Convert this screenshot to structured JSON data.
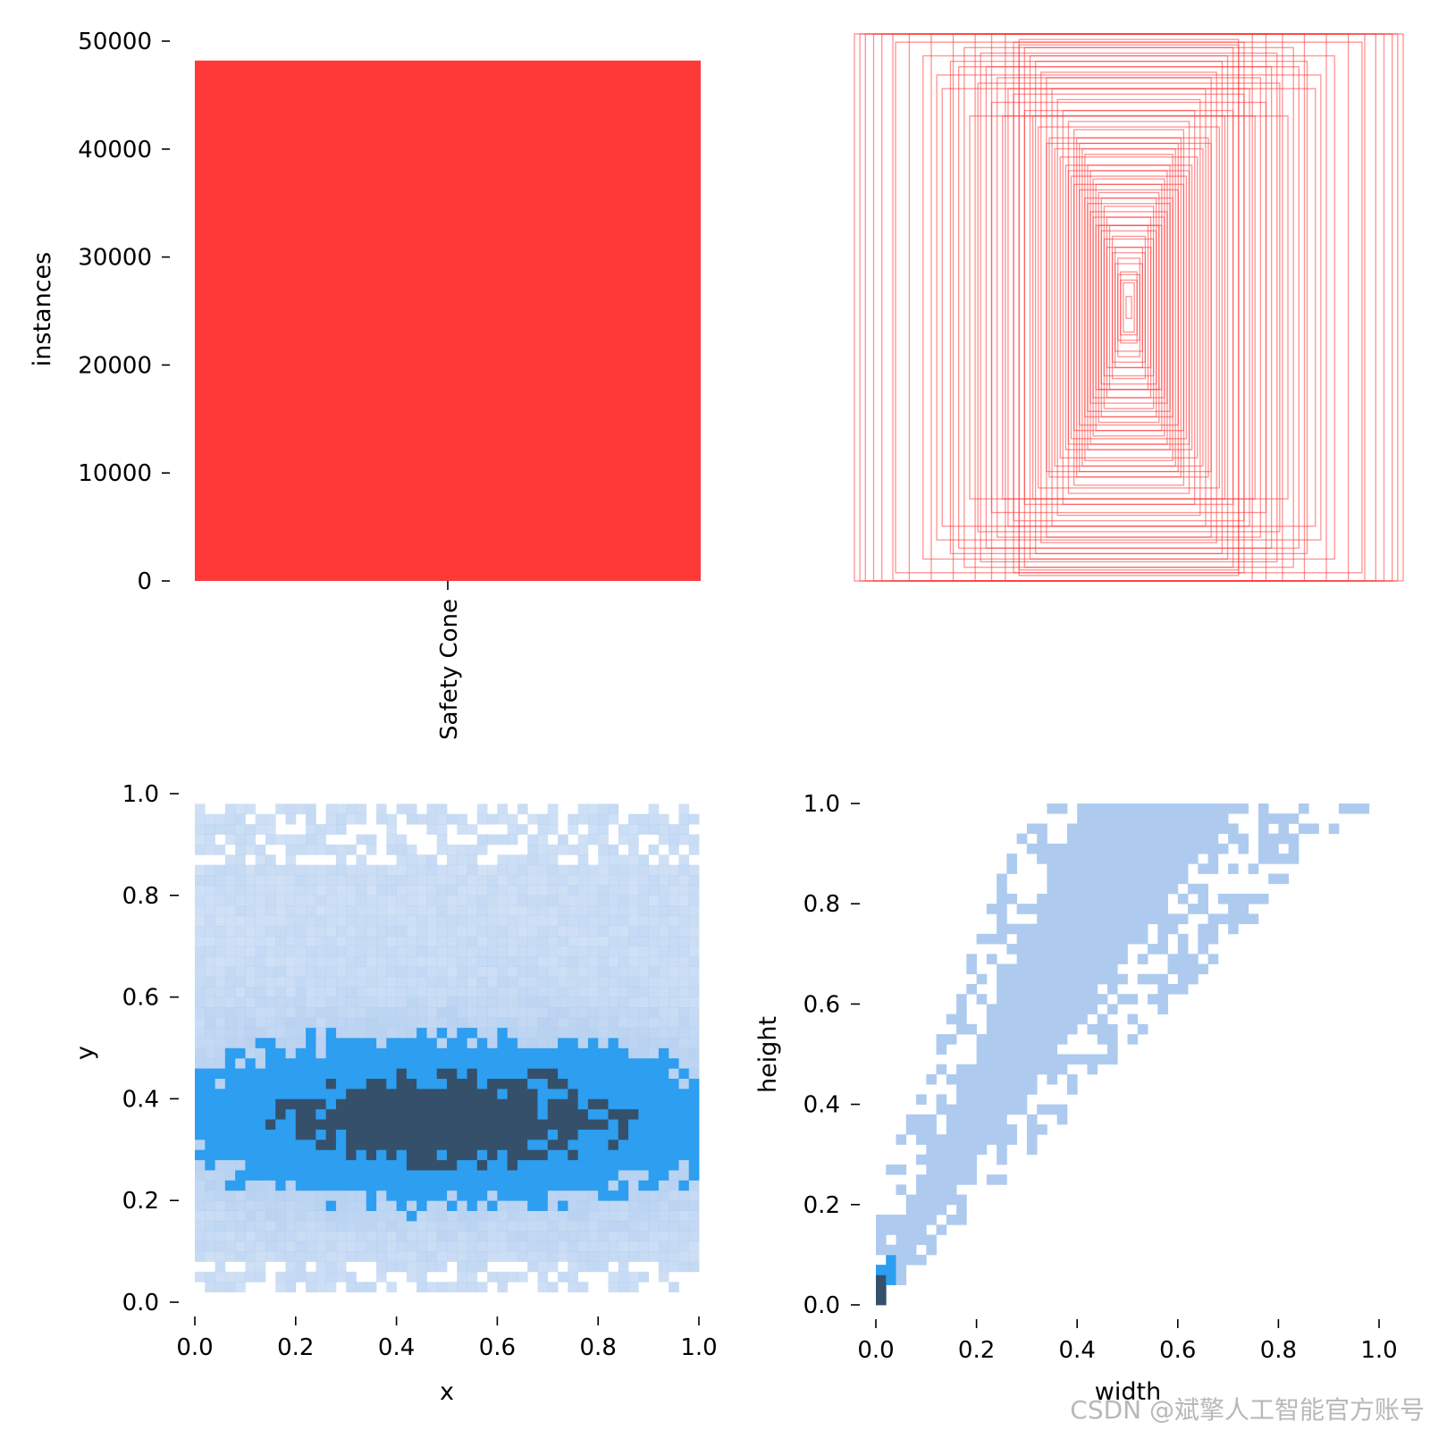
{
  "colors": {
    "bar": "#ff3838",
    "box_stroke": "#ff3838",
    "heat_low": "#aecbef",
    "heat_mid": "#2d9ef0",
    "heat_high": "#35506b"
  },
  "watermark": "CSDN @斌擎人工智能官方账号",
  "chart_data": [
    {
      "id": "class-counts",
      "type": "bar",
      "categories": [
        "Safety Cone"
      ],
      "values": [
        48200
      ],
      "xlabel": "",
      "ylabel": "instances",
      "ylim": [
        0,
        50000
      ],
      "yticks": [
        0,
        10000,
        20000,
        30000,
        40000,
        50000
      ],
      "ytick_labels": [
        "0",
        "10000",
        "20000",
        "30000",
        "40000",
        "50000"
      ],
      "grid": false
    },
    {
      "id": "box-overlay",
      "type": "scatter",
      "description_of_marks": "overlaid bounding boxes centered at (0.5, 0.5), sized by width/height",
      "xlim": [
        0,
        1
      ],
      "ylim": [
        0,
        1
      ],
      "boxes_wh": [
        [
          1.0,
          1.0
        ],
        [
          0.98,
          1.0
        ],
        [
          0.96,
          1.0
        ],
        [
          0.93,
          1.0
        ],
        [
          0.9,
          1.0
        ],
        [
          0.86,
          1.0
        ],
        [
          0.8,
          1.0
        ],
        [
          0.72,
          1.0
        ],
        [
          0.64,
          1.0
        ],
        [
          0.56,
          1.0
        ],
        [
          0.5,
          1.0
        ],
        [
          0.45,
          1.0
        ],
        [
          0.4,
          0.98
        ],
        [
          0.4,
          0.96
        ],
        [
          0.38,
          0.95
        ],
        [
          0.42,
          0.97
        ],
        [
          0.36,
          0.92
        ],
        [
          0.34,
          0.9
        ],
        [
          0.32,
          0.86
        ],
        [
          0.3,
          0.84
        ],
        [
          0.28,
          0.8
        ],
        [
          0.26,
          0.76
        ],
        [
          0.24,
          0.72
        ],
        [
          0.22,
          0.68
        ],
        [
          0.2,
          0.65
        ],
        [
          0.19,
          0.62
        ],
        [
          0.18,
          0.6
        ],
        [
          0.17,
          0.58
        ],
        [
          0.16,
          0.56
        ],
        [
          0.15,
          0.52
        ],
        [
          0.14,
          0.5
        ],
        [
          0.13,
          0.47
        ],
        [
          0.12,
          0.45
        ],
        [
          0.11,
          0.42
        ],
        [
          0.1,
          0.4
        ],
        [
          0.09,
          0.37
        ],
        [
          0.08,
          0.33
        ],
        [
          0.07,
          0.3
        ],
        [
          0.06,
          0.26
        ],
        [
          0.05,
          0.22
        ],
        [
          0.04,
          0.18
        ],
        [
          0.03,
          0.13
        ],
        [
          0.02,
          0.09
        ],
        [
          0.01,
          0.04
        ],
        [
          0.6,
          0.95
        ],
        [
          0.65,
          0.9
        ],
        [
          0.7,
          0.85
        ],
        [
          0.55,
          0.82
        ],
        [
          0.5,
          0.75
        ],
        [
          0.46,
          0.7
        ],
        [
          0.44,
          0.8
        ],
        [
          0.35,
          0.7
        ],
        [
          0.3,
          0.6
        ],
        [
          0.25,
          0.55
        ],
        [
          0.22,
          0.5
        ],
        [
          0.2,
          0.45
        ],
        [
          0.16,
          0.4
        ],
        [
          0.14,
          0.35
        ],
        [
          0.12,
          0.3
        ],
        [
          0.1,
          0.28
        ],
        [
          0.52,
          0.88
        ],
        [
          0.48,
          0.84
        ],
        [
          0.42,
          0.78
        ],
        [
          0.38,
          0.72
        ],
        [
          0.33,
          0.66
        ],
        [
          0.29,
          0.62
        ],
        [
          0.27,
          0.58
        ],
        [
          0.23,
          0.52
        ],
        [
          0.21,
          0.48
        ],
        [
          0.18,
          0.43
        ],
        [
          0.15,
          0.38
        ],
        [
          0.13,
          0.33
        ],
        [
          0.11,
          0.3
        ],
        [
          0.09,
          0.25
        ],
        [
          0.08,
          0.22
        ],
        [
          0.06,
          0.2
        ],
        [
          0.05,
          0.16
        ],
        [
          0.04,
          0.12
        ],
        [
          0.03,
          0.1
        ],
        [
          0.75,
          0.92
        ],
        [
          0.85,
          0.97
        ],
        [
          0.68,
          0.8
        ],
        [
          0.58,
          0.7
        ],
        [
          0.62,
          0.88
        ],
        [
          0.54,
          0.93
        ]
      ]
    },
    {
      "id": "xy-hist",
      "type": "heatmap",
      "xlabel": "x",
      "ylabel": "y",
      "xlim": [
        0,
        1
      ],
      "ylim": [
        0,
        1
      ],
      "xticks": [
        0.0,
        0.2,
        0.4,
        0.6,
        0.8,
        1.0
      ],
      "xtick_labels": [
        "0.0",
        "0.2",
        "0.4",
        "0.6",
        "0.8",
        "1.0"
      ],
      "yticks": [
        0.0,
        0.2,
        0.4,
        0.6,
        0.8,
        1.0
      ],
      "ytick_labels": [
        "0.0",
        "0.2",
        "0.4",
        "0.6",
        "0.8",
        "1.0"
      ],
      "bins": 50,
      "density_peak_y": 0.36,
      "y_extent": [
        0.02,
        0.98
      ]
    },
    {
      "id": "wh-hist",
      "type": "heatmap",
      "xlabel": "width",
      "ylabel": "height",
      "xlim": [
        0,
        1
      ],
      "ylim": [
        0,
        1
      ],
      "xticks": [
        0.0,
        0.2,
        0.4,
        0.6,
        0.8,
        1.0
      ],
      "xtick_labels": [
        "0.0",
        "0.2",
        "0.4",
        "0.6",
        "0.8",
        "1.0"
      ],
      "yticks": [
        0.0,
        0.2,
        0.4,
        0.6,
        0.8,
        1.0
      ],
      "ytick_labels": [
        "0.0",
        "0.2",
        "0.4",
        "0.6",
        "0.8",
        "1.0"
      ],
      "bins": 50,
      "density_peak": [
        0.01,
        0.02
      ]
    }
  ]
}
